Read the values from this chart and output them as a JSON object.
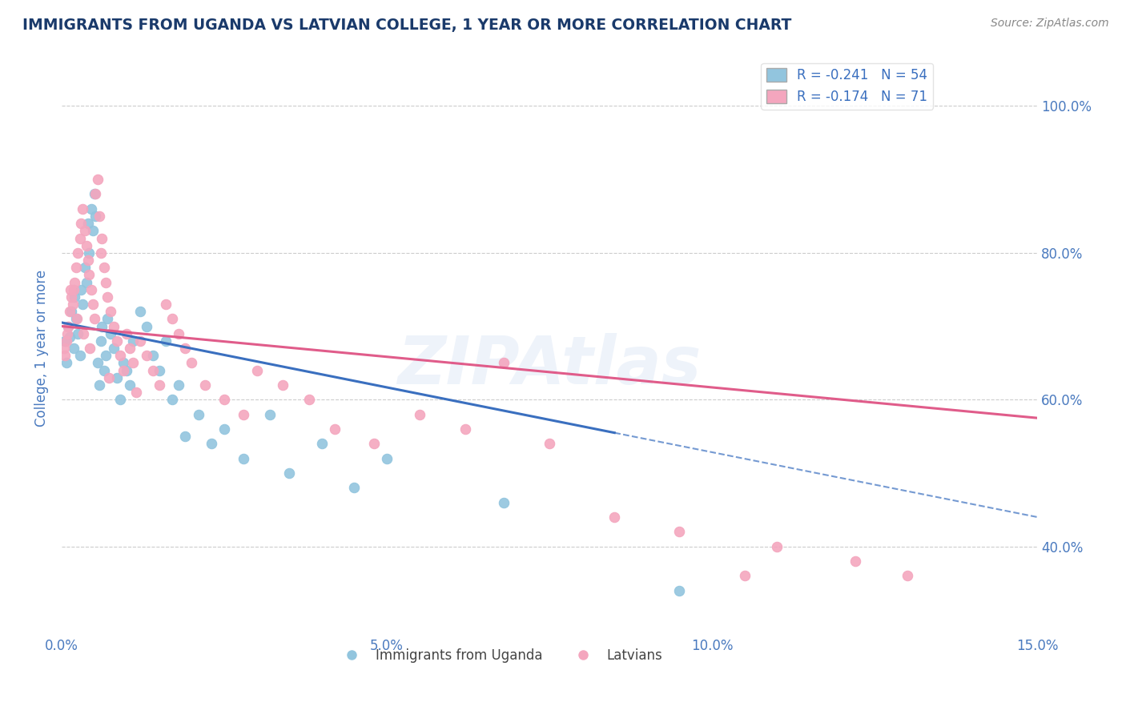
{
  "title": "IMMIGRANTS FROM UGANDA VS LATVIAN COLLEGE, 1 YEAR OR MORE CORRELATION CHART",
  "source_text": "Source: ZipAtlas.com",
  "ylabel": "College, 1 year or more",
  "xlim": [
    0.0,
    15.0
  ],
  "ylim": [
    28.0,
    106.0
  ],
  "ytick_labels": [
    "40.0%",
    "60.0%",
    "80.0%",
    "100.0%"
  ],
  "ytick_values": [
    40.0,
    60.0,
    80.0,
    100.0
  ],
  "xtick_labels": [
    "0.0%",
    "5.0%",
    "10.0%",
    "15.0%"
  ],
  "xtick_values": [
    0.0,
    5.0,
    10.0,
    15.0
  ],
  "legend_r1": "R = -0.241",
  "legend_n1": "N = 54",
  "legend_r2": "R = -0.174",
  "legend_n2": "N = 71",
  "color_blue": "#92c5de",
  "color_pink": "#f4a6be",
  "color_blue_line": "#3a6fbf",
  "color_pink_line": "#e05c8a",
  "color_title": "#1a3a6b",
  "color_source": "#888888",
  "color_axis_labels": "#4a7abf",
  "watermark": "ZIPAtlas",
  "legend_label1": "Immigrants from Uganda",
  "legend_label2": "Latvians",
  "blue_x_end": 8.5,
  "blue_line_y0": 70.5,
  "blue_line_y15": 44.0,
  "pink_line_y0": 70.0,
  "pink_line_y15": 57.5,
  "blue_scatter_x": [
    0.05,
    0.07,
    0.1,
    0.12,
    0.15,
    0.18,
    0.2,
    0.22,
    0.25,
    0.28,
    0.3,
    0.32,
    0.35,
    0.38,
    0.4,
    0.42,
    0.45,
    0.48,
    0.5,
    0.52,
    0.55,
    0.58,
    0.6,
    0.62,
    0.65,
    0.68,
    0.7,
    0.75,
    0.8,
    0.85,
    0.9,
    0.95,
    1.0,
    1.05,
    1.1,
    1.2,
    1.3,
    1.4,
    1.5,
    1.6,
    1.7,
    1.8,
    1.9,
    2.1,
    2.3,
    2.5,
    2.8,
    3.2,
    3.5,
    4.0,
    4.5,
    5.0,
    6.8,
    9.5
  ],
  "blue_scatter_y": [
    68.0,
    65.0,
    70.0,
    68.5,
    72.0,
    67.0,
    74.0,
    71.0,
    69.0,
    66.0,
    75.0,
    73.0,
    78.0,
    76.0,
    84.0,
    80.0,
    86.0,
    83.0,
    88.0,
    85.0,
    65.0,
    62.0,
    68.0,
    70.0,
    64.0,
    66.0,
    71.0,
    69.0,
    67.0,
    63.0,
    60.0,
    65.0,
    64.0,
    62.0,
    68.0,
    72.0,
    70.0,
    66.0,
    64.0,
    68.0,
    60.0,
    62.0,
    55.0,
    58.0,
    54.0,
    56.0,
    52.0,
    58.0,
    50.0,
    54.0,
    48.0,
    52.0,
    46.0,
    34.0
  ],
  "pink_scatter_x": [
    0.03,
    0.05,
    0.07,
    0.1,
    0.12,
    0.15,
    0.18,
    0.2,
    0.22,
    0.25,
    0.28,
    0.3,
    0.32,
    0.35,
    0.38,
    0.4,
    0.42,
    0.45,
    0.48,
    0.5,
    0.52,
    0.55,
    0.58,
    0.6,
    0.62,
    0.65,
    0.68,
    0.7,
    0.75,
    0.8,
    0.85,
    0.9,
    0.95,
    1.0,
    1.05,
    1.1,
    1.2,
    1.3,
    1.4,
    1.5,
    1.6,
    1.7,
    1.8,
    1.9,
    2.0,
    2.2,
    2.5,
    2.8,
    3.0,
    3.4,
    3.8,
    4.2,
    4.8,
    5.5,
    6.2,
    6.8,
    7.5,
    8.5,
    9.5,
    10.5,
    11.0,
    12.2,
    13.0,
    0.08,
    0.13,
    0.17,
    0.23,
    0.33,
    0.43,
    0.72,
    1.15
  ],
  "pink_scatter_y": [
    67.0,
    66.0,
    68.0,
    70.0,
    72.0,
    74.0,
    75.0,
    76.0,
    78.0,
    80.0,
    82.0,
    84.0,
    86.0,
    83.0,
    81.0,
    79.0,
    77.0,
    75.0,
    73.0,
    71.0,
    88.0,
    90.0,
    85.0,
    80.0,
    82.0,
    78.0,
    76.0,
    74.0,
    72.0,
    70.0,
    68.0,
    66.0,
    64.0,
    69.0,
    67.0,
    65.0,
    68.0,
    66.0,
    64.0,
    62.0,
    73.0,
    71.0,
    69.0,
    67.0,
    65.0,
    62.0,
    60.0,
    58.0,
    64.0,
    62.0,
    60.0,
    56.0,
    54.0,
    58.0,
    56.0,
    65.0,
    54.0,
    44.0,
    42.0,
    36.0,
    40.0,
    38.0,
    36.0,
    69.0,
    75.0,
    73.0,
    71.0,
    69.0,
    67.0,
    63.0,
    61.0
  ]
}
